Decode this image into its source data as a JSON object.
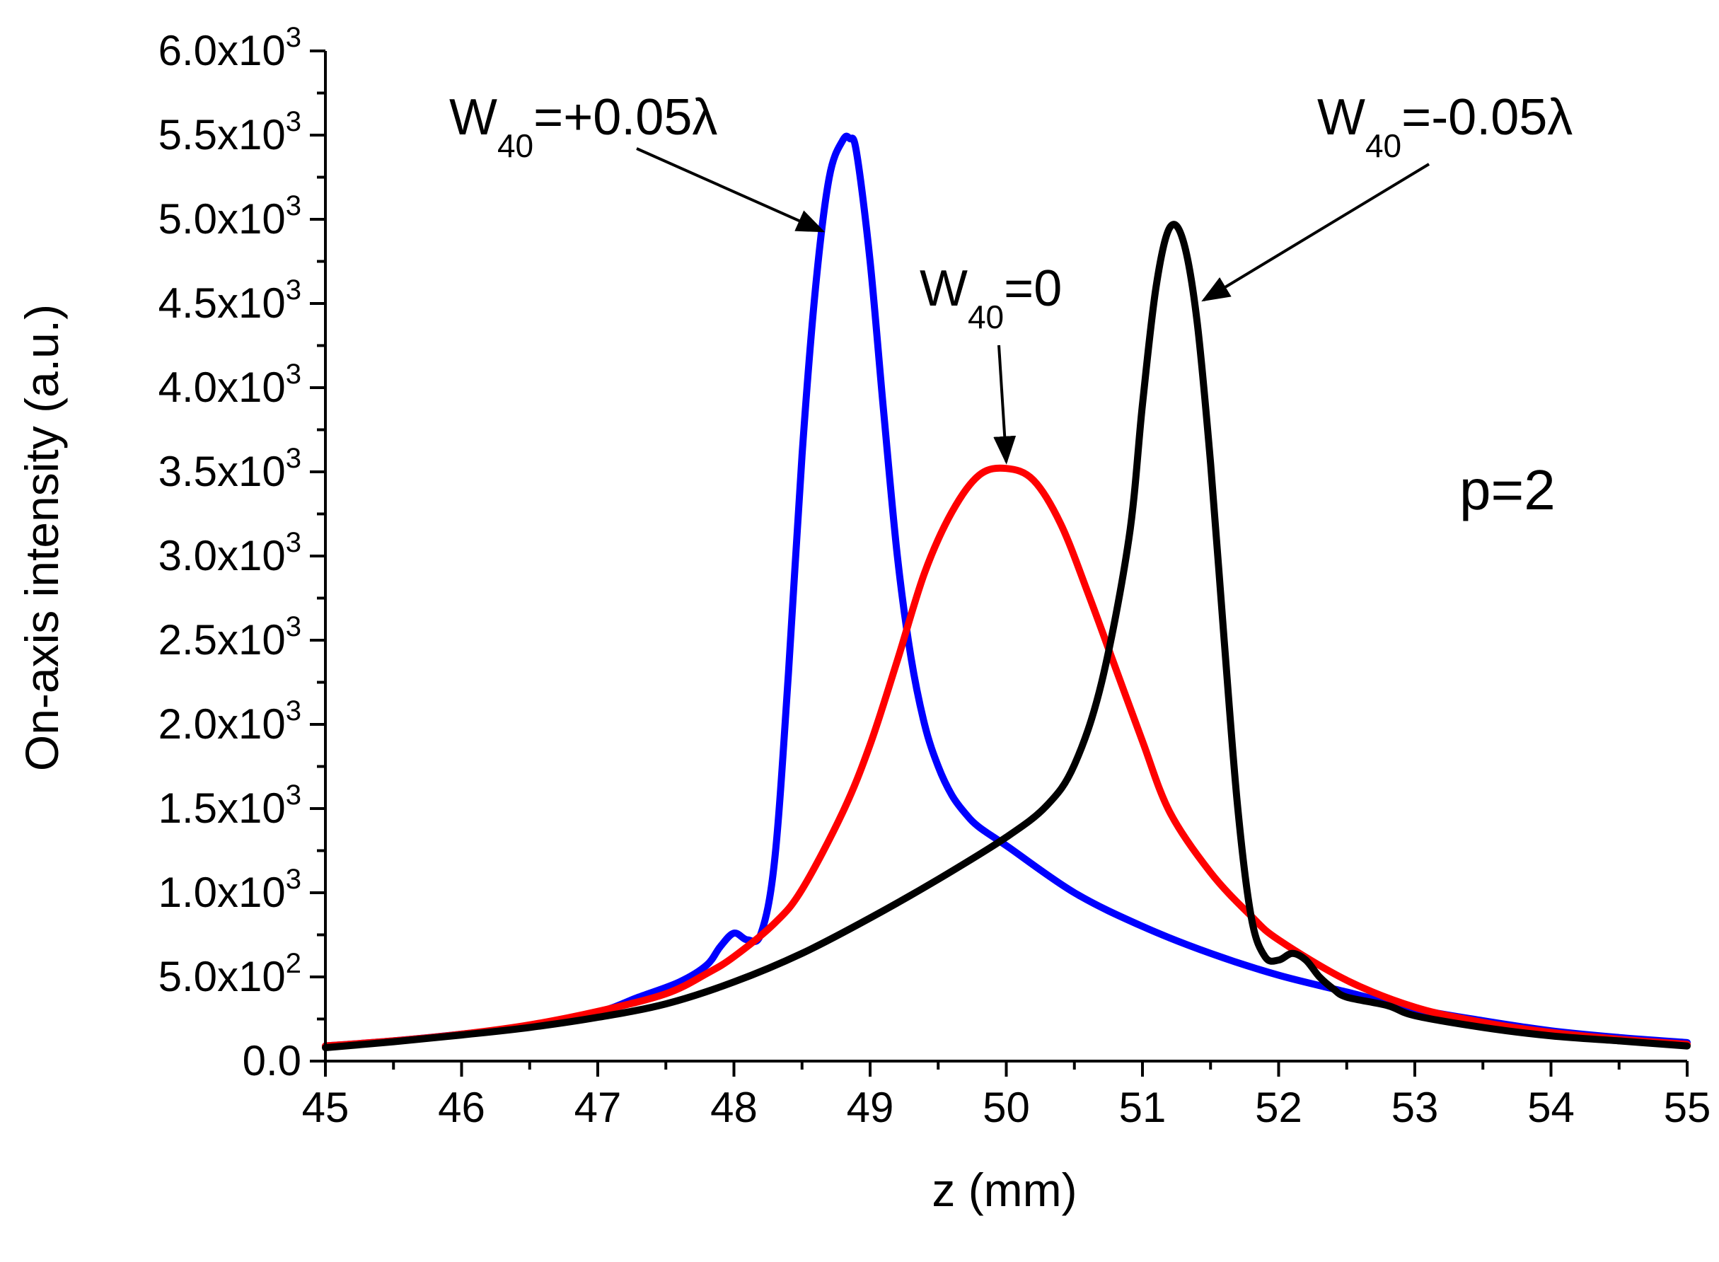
{
  "chart_data": {
    "type": "line",
    "title": "",
    "xlabel": "z (mm)",
    "ylabel": "On-axis intensity (a.u.)",
    "xlim": [
      45,
      55
    ],
    "ylim": [
      0,
      6000
    ],
    "x_ticks": [
      {
        "value": 45,
        "label": "45"
      },
      {
        "value": 46,
        "label": "46"
      },
      {
        "value": 47,
        "label": "47"
      },
      {
        "value": 48,
        "label": "48"
      },
      {
        "value": 49,
        "label": "49"
      },
      {
        "value": 50,
        "label": "50"
      },
      {
        "value": 51,
        "label": "51"
      },
      {
        "value": 52,
        "label": "52"
      },
      {
        "value": 53,
        "label": "53"
      },
      {
        "value": 54,
        "label": "54"
      },
      {
        "value": 55,
        "label": "55"
      }
    ],
    "y_ticks": [
      {
        "value": 0,
        "label": "0.0"
      },
      {
        "value": 500,
        "mantissa": "5.0x10",
        "exp": "2"
      },
      {
        "value": 1000,
        "mantissa": "1.0x10",
        "exp": "3"
      },
      {
        "value": 1500,
        "mantissa": "1.5x10",
        "exp": "3"
      },
      {
        "value": 2000,
        "mantissa": "2.0x10",
        "exp": "3"
      },
      {
        "value": 2500,
        "mantissa": "2.5x10",
        "exp": "3"
      },
      {
        "value": 3000,
        "mantissa": "3.0x10",
        "exp": "3"
      },
      {
        "value": 3500,
        "mantissa": "3.5x10",
        "exp": "3"
      },
      {
        "value": 4000,
        "mantissa": "4.0x10",
        "exp": "3"
      },
      {
        "value": 4500,
        "mantissa": "4.5x10",
        "exp": "3"
      },
      {
        "value": 5000,
        "mantissa": "5.0x10",
        "exp": "3"
      },
      {
        "value": 5500,
        "mantissa": "5.5x10",
        "exp": "3"
      },
      {
        "value": 6000,
        "mantissa": "6.0x10",
        "exp": "3"
      }
    ],
    "series": [
      {
        "name": "W40=+0.05λ",
        "color": "#0000ff",
        "x": [
          45,
          45.5,
          46,
          46.5,
          47,
          47.3,
          47.6,
          47.8,
          47.9,
          48,
          48.1,
          48.2,
          48.3,
          48.4,
          48.5,
          48.6,
          48.7,
          48.8,
          48.85,
          48.9,
          49,
          49.1,
          49.2,
          49.3,
          49.4,
          49.5,
          49.6,
          49.7,
          49.8,
          50,
          50.5,
          51,
          51.5,
          52,
          52.5,
          53,
          53.5,
          54,
          54.5,
          55
        ],
        "y": [
          90,
          120,
          160,
          210,
          290,
          380,
          470,
          570,
          680,
          760,
          720,
          760,
          1200,
          2300,
          3600,
          4600,
          5250,
          5470,
          5480,
          5400,
          4750,
          3850,
          3000,
          2400,
          2000,
          1750,
          1580,
          1470,
          1390,
          1280,
          1000,
          800,
          640,
          510,
          410,
          310,
          240,
          180,
          140,
          110
        ]
      },
      {
        "name": "W40=0",
        "color": "#ff0000",
        "x": [
          45,
          45.5,
          46,
          46.5,
          47,
          47.5,
          47.8,
          48,
          48.3,
          48.5,
          48.8,
          49,
          49.2,
          49.4,
          49.6,
          49.8,
          50,
          50.2,
          50.4,
          50.6,
          50.8,
          51,
          51.2,
          51.5,
          51.8,
          52,
          52.5,
          53,
          53.5,
          54,
          54.5,
          55
        ],
        "y": [
          90,
          120,
          160,
          215,
          295,
          400,
          520,
          620,
          820,
          1020,
          1480,
          1880,
          2380,
          2900,
          3260,
          3480,
          3520,
          3450,
          3190,
          2780,
          2340,
          1900,
          1480,
          1120,
          860,
          720,
          480,
          320,
          230,
          170,
          130,
          100
        ]
      },
      {
        "name": "W40=-0.05λ",
        "color": "#000000",
        "x": [
          45,
          45.5,
          46,
          46.5,
          47,
          47.5,
          48,
          48.5,
          49,
          49.5,
          50,
          50.3,
          50.5,
          50.7,
          50.9,
          51,
          51.1,
          51.2,
          51.3,
          51.4,
          51.5,
          51.6,
          51.7,
          51.8,
          51.9,
          52,
          52.1,
          52.2,
          52.3,
          52.4,
          52.5,
          52.8,
          53,
          53.5,
          54,
          54.5,
          55
        ],
        "y": [
          80,
          115,
          155,
          200,
          260,
          340,
          470,
          640,
          850,
          1080,
          1330,
          1520,
          1760,
          2250,
          3100,
          3900,
          4600,
          4950,
          4870,
          4400,
          3550,
          2500,
          1500,
          850,
          620,
          600,
          640,
          600,
          500,
          430,
          380,
          330,
          270,
          200,
          150,
          120,
          90
        ]
      }
    ],
    "annotations": [
      {
        "id": "pos",
        "base": "W",
        "sub": "40",
        "rest": "=+0.05λ",
        "arrow_to": {
          "x": 48.65,
          "y": 4930
        }
      },
      {
        "id": "zero",
        "base": "W",
        "sub": "40",
        "rest": "=0",
        "arrow_to": {
          "x": 50,
          "y": 3560
        }
      },
      {
        "id": "neg",
        "base": "W",
        "sub": "40",
        "rest": "=-0.05λ",
        "arrow_to": {
          "x": 51.45,
          "y": 4520
        }
      },
      {
        "id": "param",
        "text": "p=2"
      }
    ]
  }
}
